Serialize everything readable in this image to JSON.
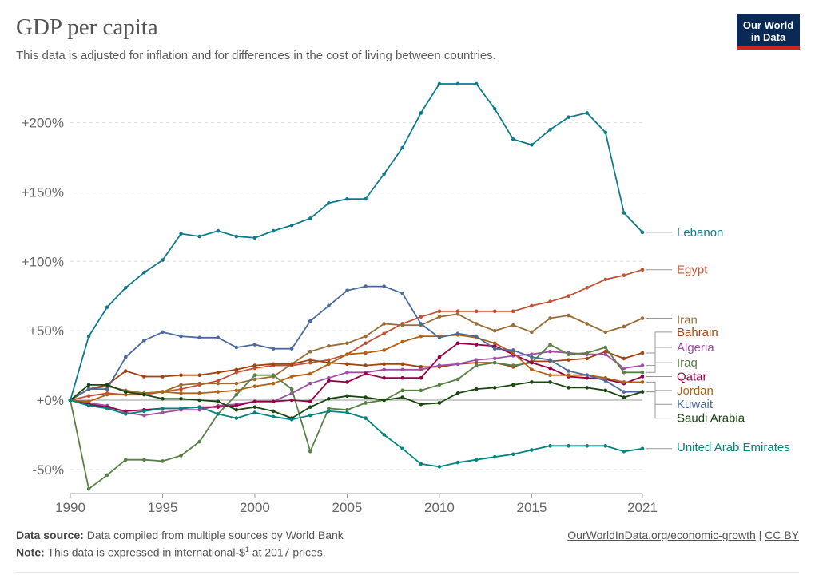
{
  "header": {
    "title": "GDP per capita",
    "subtitle": "This data is adjusted for inflation and for differences in the cost of living between countries."
  },
  "logo": {
    "line1": "Our World",
    "line2": "in Data"
  },
  "footer": {
    "source_label": "Data source:",
    "source_text": "Data compiled from multiple sources by World Bank",
    "note_label": "Note:",
    "note_text_before": "This data is expressed in international-$",
    "note_sup": "1",
    "note_text_after": " at 2017 prices.",
    "link": "OurWorldInData.org/economic-growth",
    "separator": "|",
    "license": "CC BY"
  },
  "chart_data": {
    "type": "line",
    "title": "GDP per capita",
    "ylim": [
      -60,
      230
    ],
    "xlim": [
      1990,
      2021
    ],
    "y_ticks": [
      -50,
      0,
      50,
      100,
      150,
      200
    ],
    "y_tick_labels": [
      "-50%",
      "+0%",
      "+50%",
      "+100%",
      "+150%",
      "+200%"
    ],
    "x_ticks": [
      1990,
      1995,
      2000,
      2005,
      2010,
      2015,
      2021
    ],
    "x_tick_labels": [
      "1990",
      "1995",
      "2000",
      "2005",
      "2010",
      "2015",
      "2021"
    ],
    "grid": "horizontal dashed",
    "legend": "right-end labels",
    "x": [
      1990,
      1991,
      1992,
      1993,
      1994,
      1995,
      1996,
      1997,
      1998,
      1999,
      2000,
      2001,
      2002,
      2003,
      2004,
      2005,
      2006,
      2007,
      2008,
      2009,
      2010,
      2011,
      2012,
      2013,
      2014,
      2015,
      2016,
      2017,
      2018,
      2019,
      2020,
      2021
    ],
    "series": [
      {
        "name": "Lebanon",
        "color": "#0f7b8a",
        "label_y": 121,
        "values": [
          0,
          46,
          67,
          81,
          92,
          101,
          120,
          118,
          122,
          118,
          117,
          122,
          126,
          131,
          142,
          145,
          145,
          163,
          182,
          207,
          228,
          228,
          228,
          210,
          188,
          184,
          195,
          204,
          207,
          193,
          135,
          121
        ]
      },
      {
        "name": "Egypt",
        "color": "#c05336",
        "label_y": 94,
        "values": [
          0,
          3,
          5,
          4,
          4,
          6,
          8,
          11,
          14,
          20,
          23,
          25,
          25,
          27,
          29,
          33,
          41,
          48,
          55,
          60,
          64,
          64,
          64,
          64,
          64,
          68,
          71,
          75,
          81,
          87,
          90,
          94
        ]
      },
      {
        "name": "Iran",
        "color": "#996d39",
        "label_y": 58,
        "values": [
          0,
          8,
          10,
          7,
          5,
          6,
          11,
          12,
          12,
          12,
          15,
          17,
          26,
          35,
          39,
          41,
          46,
          55,
          54,
          54,
          60,
          62,
          55,
          50,
          54,
          49,
          59,
          61,
          55,
          49,
          53,
          59
        ]
      },
      {
        "name": "Bahrain",
        "color": "#a2440f",
        "label_y": 49,
        "values": [
          0,
          8,
          11,
          21,
          17,
          17,
          18,
          18,
          20,
          22,
          25,
          26,
          26,
          29,
          27,
          26,
          25,
          26,
          26,
          24,
          24,
          26,
          27,
          27,
          24,
          28,
          28,
          29,
          30,
          35,
          30,
          34
        ]
      },
      {
        "name": "Algeria",
        "color": "#a04ea6",
        "label_y": 38,
        "values": [
          0,
          -2,
          -4,
          -9,
          -11,
          -9,
          -7,
          -7,
          -4,
          -3,
          -1,
          -1,
          5,
          12,
          16,
          20,
          20,
          22,
          22,
          22,
          25,
          26,
          29,
          30,
          32,
          33,
          35,
          34,
          33,
          33,
          23,
          25
        ]
      },
      {
        "name": "Iraq",
        "color": "#578145",
        "label_y": 27,
        "values": [
          0,
          -64,
          -54,
          -43,
          -43,
          -44,
          -40,
          -30,
          -10,
          4,
          18,
          18,
          8,
          -37,
          -6,
          -7,
          -2,
          0,
          7,
          7,
          11,
          15,
          25,
          27,
          25,
          27,
          40,
          33,
          34,
          38,
          20,
          20
        ]
      },
      {
        "name": "Qatar",
        "color": "#970046",
        "label_y": 17,
        "values": [
          0,
          -3,
          -5,
          -8,
          -7,
          -6,
          -6,
          -5,
          -5,
          -4,
          -1,
          -1,
          0,
          -1,
          14,
          13,
          19,
          16,
          16,
          16,
          31,
          41,
          40,
          39,
          33,
          27,
          23,
          17,
          16,
          15,
          12,
          17
        ]
      },
      {
        "name": "Jordan",
        "color": "#b16214",
        "label_y": 7,
        "values": [
          0,
          -1,
          4,
          4,
          5,
          6,
          5,
          5,
          6,
          7,
          10,
          12,
          17,
          19,
          26,
          33,
          34,
          36,
          42,
          46,
          46,
          47,
          45,
          41,
          34,
          22,
          18,
          18,
          18,
          16,
          13,
          13
        ]
      },
      {
        "name": "Kuwait",
        "color": "#4c6a9c",
        "label_y": -3,
        "values": [
          0,
          8,
          8,
          31,
          43,
          49,
          46,
          45,
          45,
          38,
          40,
          37,
          37,
          57,
          68,
          79,
          82,
          82,
          77,
          55,
          45,
          48,
          46,
          37,
          36,
          31,
          29,
          21,
          18,
          14,
          6,
          6
        ]
      },
      {
        "name": "Saudi Arabia",
        "color": "#18470f",
        "label_y": -13,
        "values": [
          0,
          11,
          11,
          6,
          4,
          1,
          1,
          0,
          -1,
          -7,
          -5,
          -8,
          -13,
          -5,
          1,
          3,
          2,
          0,
          2,
          -3,
          -2,
          5,
          8,
          9,
          11,
          13,
          13,
          9,
          9,
          7,
          2,
          6
        ]
      },
      {
        "name": "United Arab Emirates",
        "color": "#00847e",
        "label_y": -34,
        "values": [
          0,
          -4,
          -6,
          -10,
          -8,
          -6,
          -6,
          -5,
          -10,
          -13,
          -9,
          -12,
          -14,
          -11,
          -8,
          -9,
          -13,
          -25,
          -35,
          -46,
          -48,
          -45,
          -43,
          -41,
          -39,
          -36,
          -33,
          -33,
          -33,
          -33,
          -37,
          -35
        ]
      }
    ]
  }
}
